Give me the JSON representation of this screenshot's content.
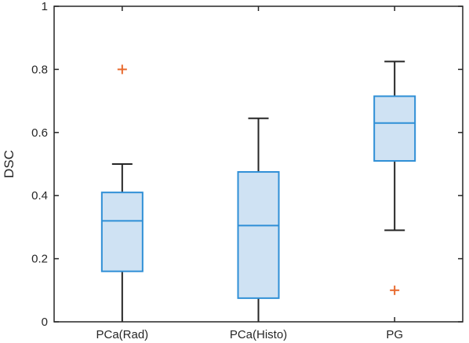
{
  "chart_data": {
    "type": "box",
    "xlabel": "",
    "ylabel": "DSC",
    "ylim": [
      0,
      1
    ],
    "yticks": [
      0,
      0.2,
      0.4,
      0.6,
      0.8,
      1
    ],
    "ytick_labels": [
      "0",
      "0.2",
      "0.4",
      "0.6",
      "0.8",
      "1"
    ],
    "categories": [
      "PCa(Rad)",
      "PCa(Histo)",
      "PG"
    ],
    "boxes": [
      {
        "category": "PCa(Rad)",
        "whisker_low": 0.0,
        "q1": 0.16,
        "median": 0.32,
        "q3": 0.41,
        "whisker_high": 0.5,
        "outliers": [
          0.8
        ]
      },
      {
        "category": "PCa(Histo)",
        "whisker_low": 0.0,
        "q1": 0.075,
        "median": 0.305,
        "q3": 0.475,
        "whisker_high": 0.645,
        "outliers": []
      },
      {
        "category": "PG",
        "whisker_low": 0.29,
        "q1": 0.51,
        "median": 0.63,
        "q3": 0.715,
        "whisker_high": 0.825,
        "outliers": [
          0.1
        ]
      }
    ],
    "colors": {
      "box_fill": "#cfe2f3",
      "box_edge": "#2f8fd6",
      "whisker": "#262626",
      "outlier": "#e8692d",
      "axes": "#262626"
    },
    "grid": false,
    "legend": "none"
  }
}
